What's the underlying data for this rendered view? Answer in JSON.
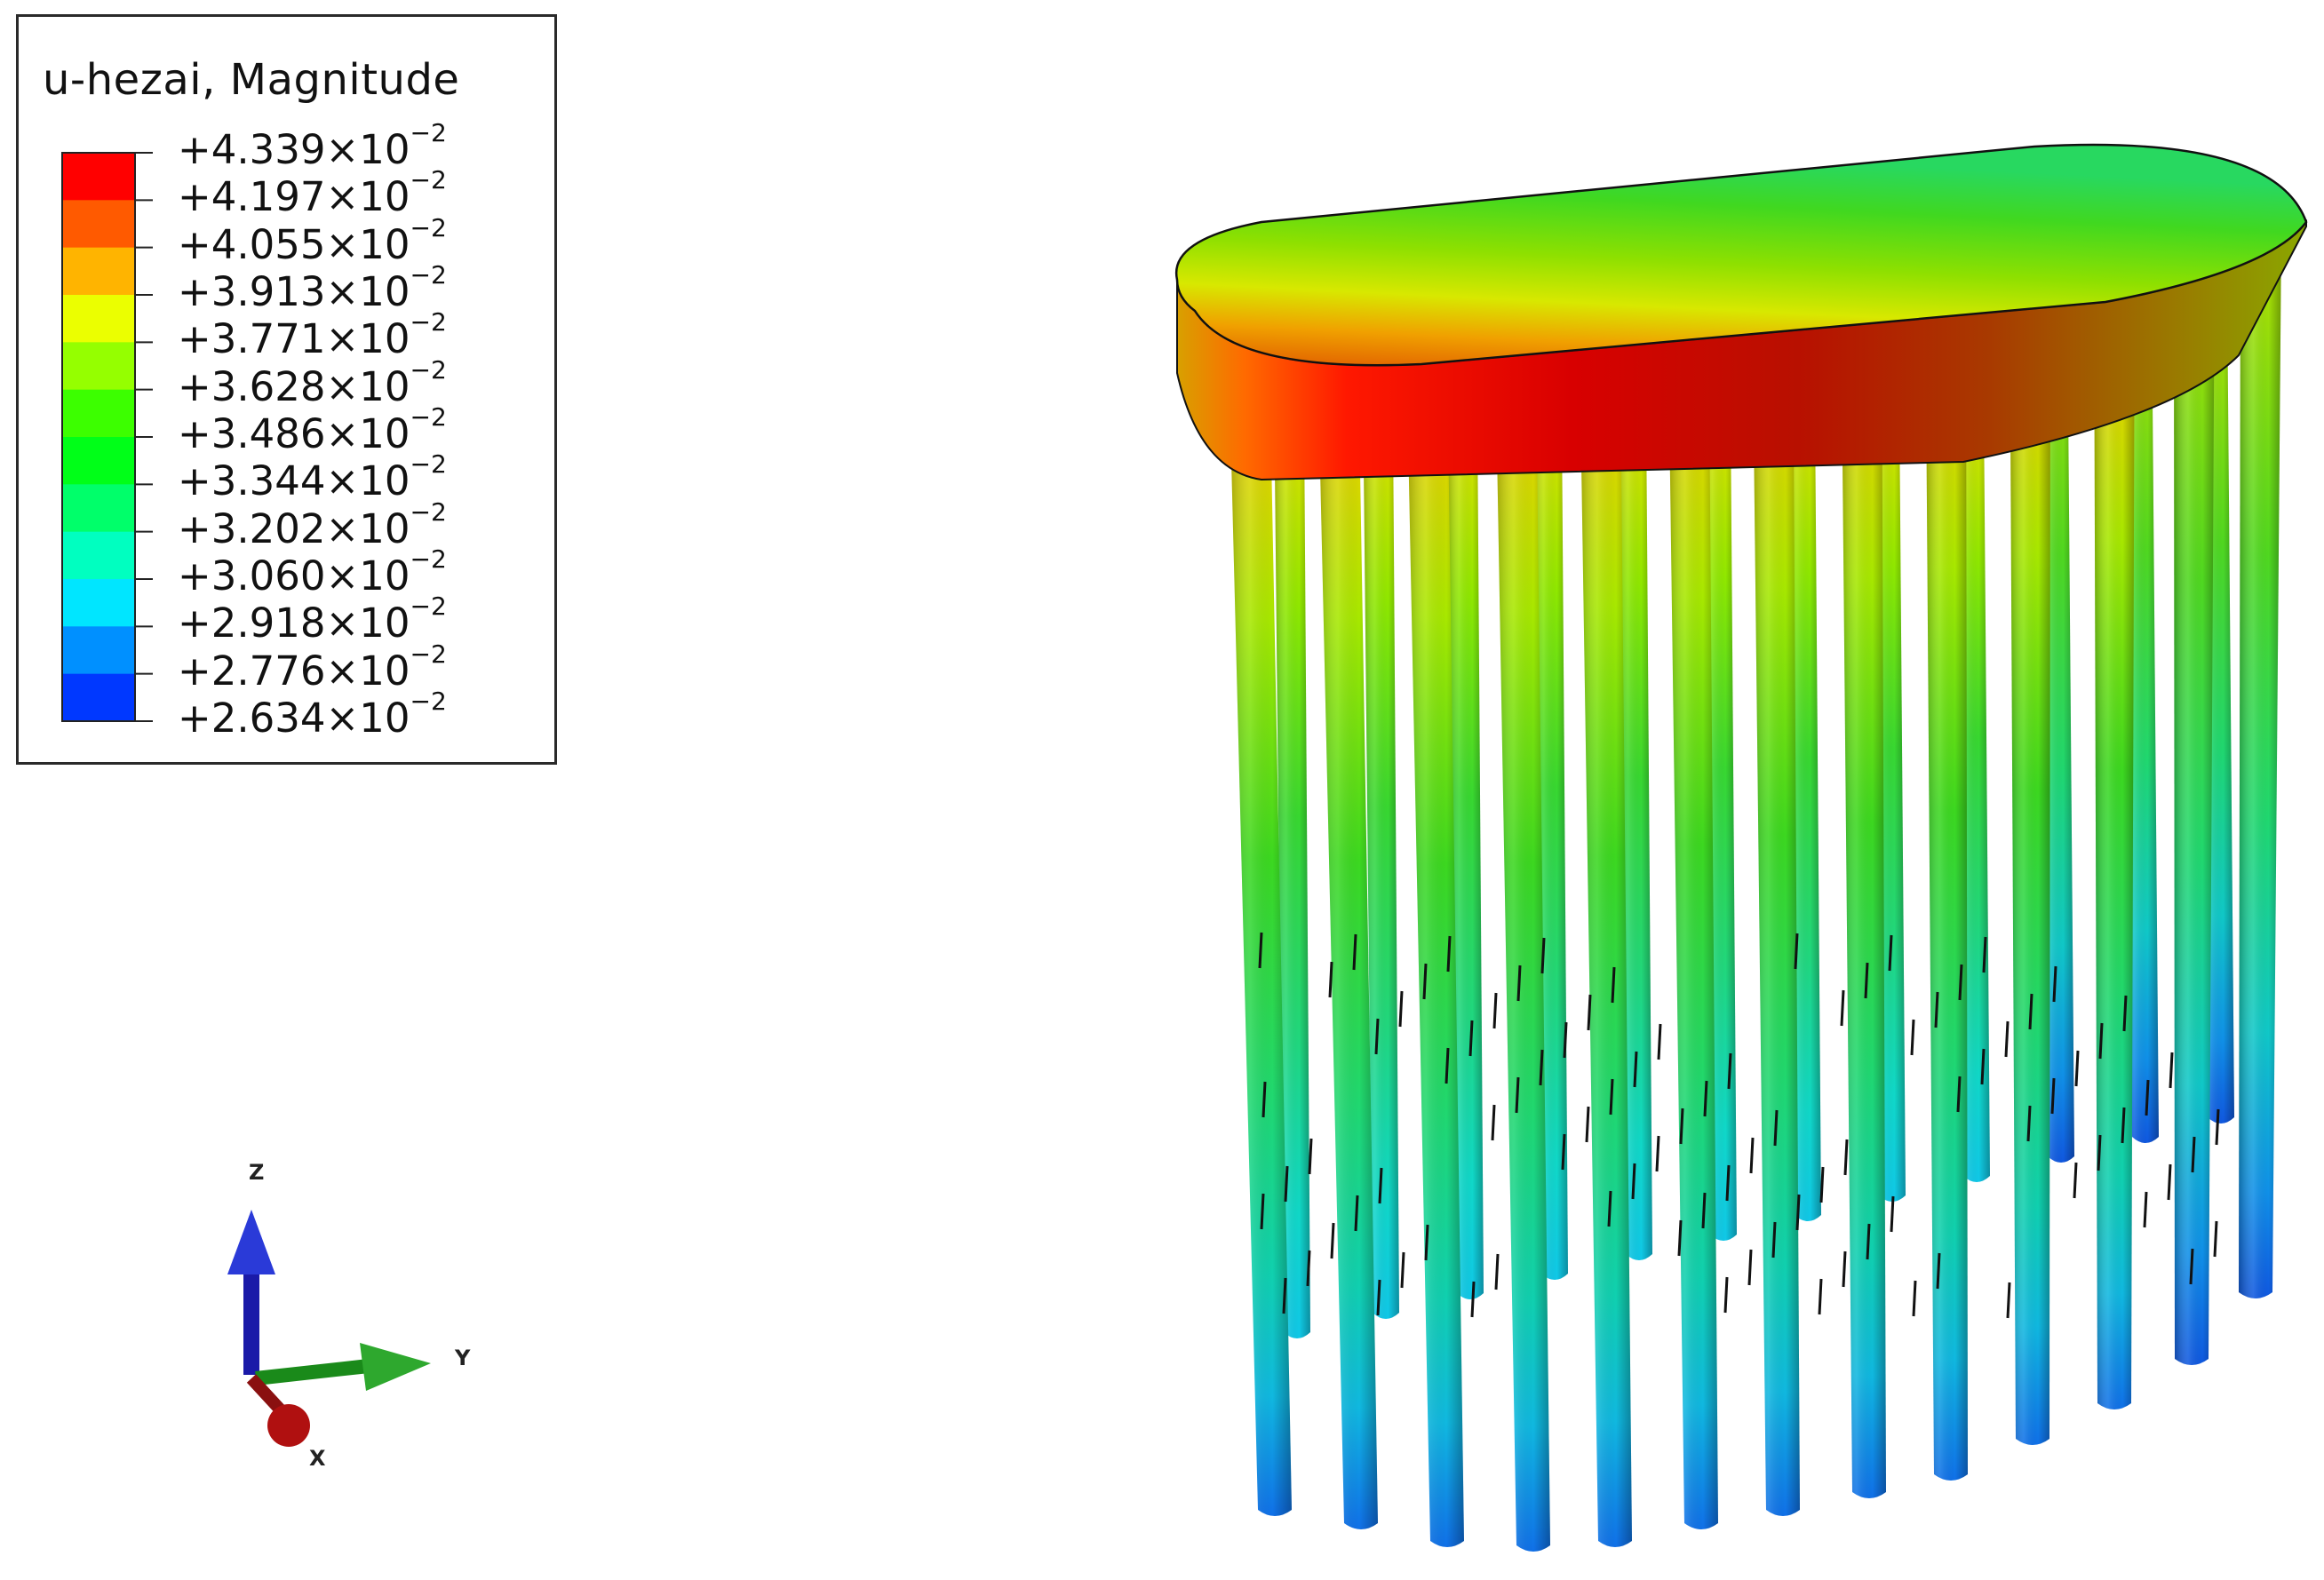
{
  "legend": {
    "title": "u-hezai, Magnitude",
    "exponent_base": "×10",
    "exponent": "−2",
    "values": [
      "+4.339",
      "+4.197",
      "+4.055",
      "+3.913",
      "+3.771",
      "+3.628",
      "+3.486",
      "+3.344",
      "+3.202",
      "+3.060",
      "+2.918",
      "+2.776",
      "+2.634"
    ],
    "bands": [
      "#ff0000",
      "#ff5a00",
      "#ffb400",
      "#ebff00",
      "#95ff00",
      "#3cff00",
      "#00ff18",
      "#00ff6a",
      "#00ffc0",
      "#00e6ff",
      "#0090ff",
      "#0038ff",
      "#0000ff"
    ]
  },
  "triad": {
    "z_label": "Z",
    "y_label": "Y",
    "x_label": "X"
  }
}
